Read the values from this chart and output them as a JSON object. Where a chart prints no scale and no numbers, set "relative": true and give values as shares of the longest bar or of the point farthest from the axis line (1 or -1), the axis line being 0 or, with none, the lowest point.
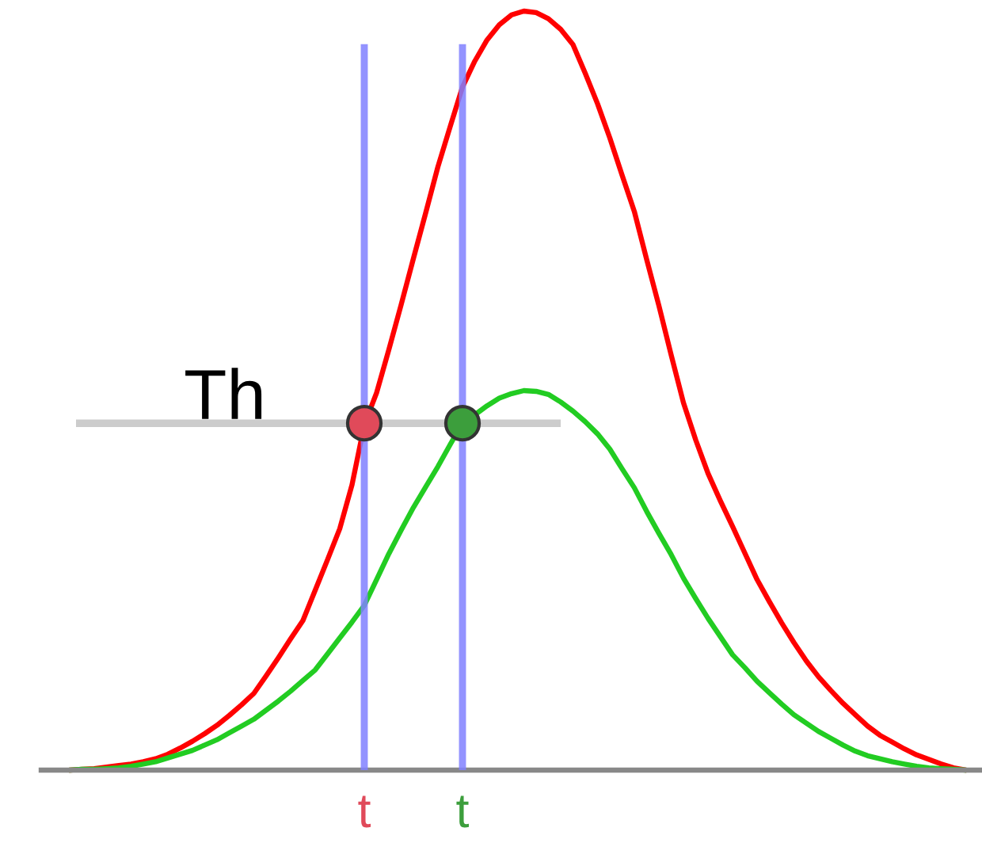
{
  "chart_data": {
    "type": "line",
    "relative": true,
    "grid": "x",
    "categories": [
      null,
      null,
      null,
      null,
      null,
      null,
      null,
      null,
      null,
      null,
      null,
      null,
      null,
      null,
      null,
      null,
      null,
      null,
      null,
      null,
      null,
      null,
      null,
      null,
      "t",
      null,
      null,
      null,
      null,
      null,
      null,
      null,
      "t",
      null,
      null,
      null,
      null,
      null,
      null,
      null,
      null,
      null,
      null,
      null,
      null,
      null,
      null,
      null,
      null,
      null,
      null,
      null,
      null,
      null,
      null,
      null,
      null,
      null,
      null,
      null,
      null,
      null,
      null,
      null,
      null,
      null,
      null,
      null,
      null,
      null,
      null,
      null,
      null,
      null
    ],
    "series": [
      {
        "color": "#ff0000",
        "values": [
          0.0,
          0.001,
          0.002,
          0.004,
          0.006,
          0.008,
          0.011,
          0.015,
          0.021,
          0.029,
          0.038,
          0.048,
          0.059,
          0.072,
          0.086,
          0.101,
          0.124,
          0.148,
          0.173,
          0.197,
          0.237,
          0.277,
          0.318,
          0.376,
          0.455,
          0.497,
          0.554,
          0.613,
          0.674,
          0.734,
          0.795,
          0.848,
          0.9,
          0.934,
          0.962,
          0.982,
          0.995,
          1.0,
          0.998,
          0.99,
          0.976,
          0.956,
          0.918,
          0.878,
          0.833,
          0.784,
          0.736,
          0.673,
          0.612,
          0.547,
          0.484,
          0.435,
          0.391,
          0.355,
          0.321,
          0.286,
          0.251,
          0.222,
          0.194,
          0.168,
          0.144,
          0.123,
          0.105,
          0.088,
          0.073,
          0.058,
          0.046,
          0.037,
          0.028,
          0.02,
          0.014,
          0.008,
          0.003,
          0.0
        ]
      },
      {
        "color": "#22cc22",
        "values": [
          0.0,
          0.001,
          0.001,
          0.002,
          0.003,
          0.005,
          0.008,
          0.011,
          0.016,
          0.021,
          0.026,
          0.033,
          0.04,
          0.049,
          0.058,
          0.067,
          0.079,
          0.091,
          0.104,
          0.118,
          0.132,
          0.153,
          0.174,
          0.195,
          0.217,
          0.251,
          0.285,
          0.316,
          0.346,
          0.373,
          0.4,
          0.429,
          0.457,
          0.468,
          0.48,
          0.49,
          0.496,
          0.5,
          0.499,
          0.495,
          0.485,
          0.473,
          0.459,
          0.443,
          0.423,
          0.397,
          0.372,
          0.341,
          0.312,
          0.284,
          0.253,
          0.226,
          0.2,
          0.176,
          0.152,
          0.135,
          0.117,
          0.102,
          0.087,
          0.073,
          0.062,
          0.051,
          0.042,
          0.033,
          0.025,
          0.019,
          0.015,
          0.011,
          0.008,
          0.005,
          0.003,
          0.002,
          0.001,
          0.0
        ]
      },
      {
        "type": "scatter",
        "marker": "circle",
        "color": "#e04a5a",
        "values": [
          null,
          null,
          null,
          null,
          null,
          null,
          null,
          null,
          null,
          null,
          null,
          null,
          null,
          null,
          null,
          null,
          null,
          null,
          null,
          null,
          null,
          null,
          null,
          null,
          0.457,
          null,
          null,
          null,
          null,
          null,
          null,
          null,
          null,
          null,
          null,
          null,
          null,
          null,
          null,
          null,
          null,
          null,
          null,
          null,
          null,
          null,
          null,
          null,
          null,
          null,
          null,
          null,
          null,
          null,
          null,
          null,
          null,
          null,
          null,
          null,
          null,
          null,
          null,
          null,
          null,
          null,
          null,
          null,
          null,
          null,
          null,
          null,
          null,
          null
        ]
      },
      {
        "type": "scatter",
        "marker": "circle",
        "color": "#3c9e3c",
        "values": [
          null,
          null,
          null,
          null,
          null,
          null,
          null,
          null,
          null,
          null,
          null,
          null,
          null,
          null,
          null,
          null,
          null,
          null,
          null,
          null,
          null,
          null,
          null,
          null,
          null,
          null,
          null,
          null,
          null,
          null,
          null,
          null,
          0.457,
          null,
          null,
          null,
          null,
          null,
          null,
          null,
          null,
          null,
          null,
          null,
          null,
          null,
          null,
          null,
          null,
          null,
          null,
          null,
          null,
          null,
          null,
          null,
          null,
          null,
          null,
          null,
          null,
          null,
          null,
          null,
          null,
          null,
          null,
          null,
          null,
          null,
          null,
          null,
          null,
          null
        ]
      }
    ],
    "ref_lines": [
      {
        "axis": "y",
        "value": 0.457,
        "label": "Th",
        "color": "#cccccc"
      }
    ]
  }
}
